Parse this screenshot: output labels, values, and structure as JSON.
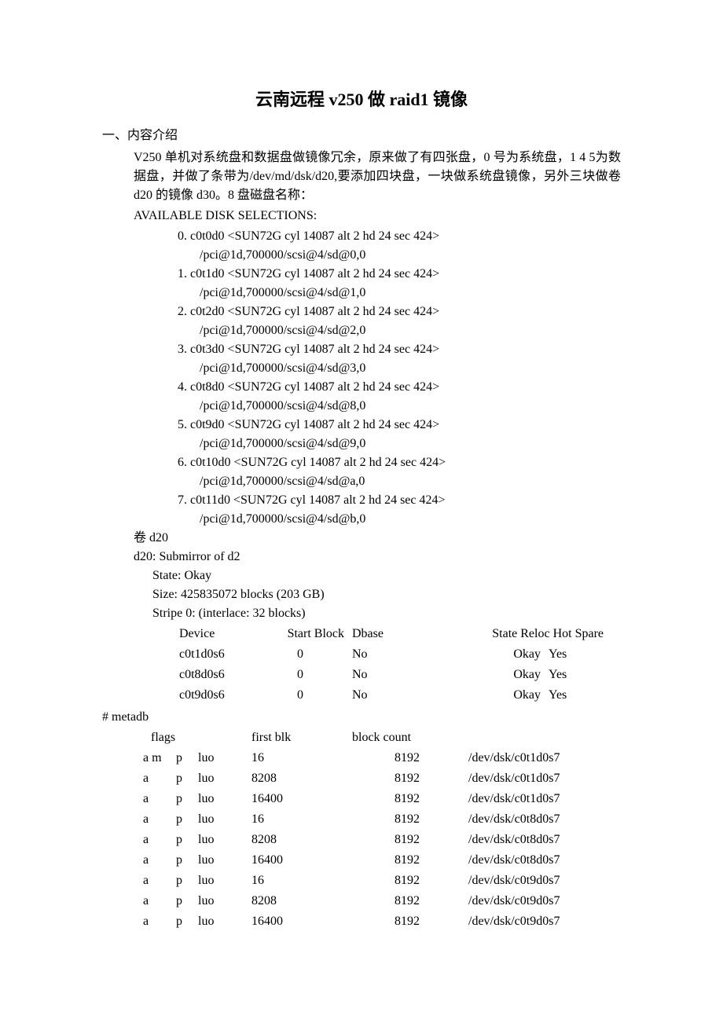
{
  "title": "云南远程 v250 做 raid1 镜像",
  "section1_heading": "一、内容介绍",
  "para1": "V250 单机对系统盘和数据盘做镜像冗余，原来做了有四张盘，0 号为系统盘，1  4  5为数据盘，并做了条带为/dev/md/dsk/d20,要添加四块盘，一块做系统盘镜像，另外三块做卷 d20 的镜像 d30。8 盘磁盘名称：",
  "avail_label": "AVAILABLE DISK SELECTIONS:",
  "disks": [
    {
      "n": "0.",
      "d": "c0t0d0 <SUN72G cyl 14087 alt 2 hd 24 sec 424>",
      "p": "/pci@1d,700000/scsi@4/sd@0,0"
    },
    {
      "n": "1.",
      "d": "c0t1d0 <SUN72G cyl 14087 alt 2 hd 24 sec 424>",
      "p": "/pci@1d,700000/scsi@4/sd@1,0"
    },
    {
      "n": "2.",
      "d": "c0t2d0 <SUN72G cyl 14087 alt 2 hd 24 sec 424>",
      "p": "/pci@1d,700000/scsi@4/sd@2,0"
    },
    {
      "n": "3.",
      "d": "c0t3d0 <SUN72G cyl 14087 alt 2 hd 24 sec 424>",
      "p": "/pci@1d,700000/scsi@4/sd@3,0"
    },
    {
      "n": "4.",
      "d": "c0t8d0 <SUN72G cyl 14087 alt 2 hd 24 sec 424>",
      "p": "/pci@1d,700000/scsi@4/sd@8,0"
    },
    {
      "n": "5.",
      "d": "c0t9d0 <SUN72G cyl 14087 alt 2 hd 24 sec 424>",
      "p": "/pci@1d,700000/scsi@4/sd@9,0"
    },
    {
      "n": "6.",
      "d": "c0t10d0 <SUN72G cyl 14087 alt 2 hd 24 sec 424>",
      "p": "/pci@1d,700000/scsi@4/sd@a,0"
    },
    {
      "n": "7.",
      "d": "c0t11d0 <SUN72G cyl 14087 alt 2 hd 24 sec 424>",
      "p": "/pci@1d,700000/scsi@4/sd@b,0"
    }
  ],
  "vol_label": "卷 d20",
  "d20_line": "d20: Submirror of d2",
  "state_line": "State: Okay",
  "size_line": "Size: 425835072 blocks (203 GB)",
  "stripe_line": "Stripe 0: (interlace: 32 blocks)",
  "stripe_header": {
    "device": "Device",
    "start": "Start Block",
    "dbase": "Dbase",
    "state": "State Reloc Hot Spare"
  },
  "stripe_rows": [
    {
      "device": "c0t1d0s6",
      "start": "0",
      "dbase": "No",
      "state": "Okay",
      "hot": "Yes"
    },
    {
      "device": "c0t8d0s6",
      "start": "0",
      "dbase": "No",
      "state": "Okay",
      "hot": "Yes"
    },
    {
      "device": "c0t9d0s6",
      "start": "0",
      "dbase": "No",
      "state": "Okay",
      "hot": "Yes"
    }
  ],
  "metadb_prompt": "# metadb",
  "metadb_header": {
    "flags": "flags",
    "first": "first blk",
    "count": "block count"
  },
  "metadb_rows": [
    {
      "f1": "a m",
      "f2": "p",
      "f3": "luo",
      "blk": "16",
      "cnt": "8192",
      "dev": "/dev/dsk/c0t1d0s7"
    },
    {
      "f1": "a",
      "f2": "p",
      "f3": "luo",
      "blk": "8208",
      "cnt": "8192",
      "dev": "/dev/dsk/c0t1d0s7"
    },
    {
      "f1": "a",
      "f2": "p",
      "f3": "luo",
      "blk": "16400",
      "cnt": "8192",
      "dev": "/dev/dsk/c0t1d0s7"
    },
    {
      "f1": "a",
      "f2": "p",
      "f3": "luo",
      "blk": "16",
      "cnt": "8192",
      "dev": "/dev/dsk/c0t8d0s7"
    },
    {
      "f1": "a",
      "f2": "p",
      "f3": "luo",
      "blk": "8208",
      "cnt": "8192",
      "dev": "/dev/dsk/c0t8d0s7"
    },
    {
      "f1": "a",
      "f2": "p",
      "f3": "luo",
      "blk": "16400",
      "cnt": "8192",
      "dev": "/dev/dsk/c0t8d0s7"
    },
    {
      "f1": "a",
      "f2": "p",
      "f3": "luo",
      "blk": "16",
      "cnt": "8192",
      "dev": "/dev/dsk/c0t9d0s7"
    },
    {
      "f1": "a",
      "f2": "p",
      "f3": "luo",
      "blk": "8208",
      "cnt": "8192",
      "dev": "/dev/dsk/c0t9d0s7"
    },
    {
      "f1": "a",
      "f2": "p",
      "f3": "luo",
      "blk": "16400",
      "cnt": "8192",
      "dev": "/dev/dsk/c0t9d0s7"
    }
  ]
}
